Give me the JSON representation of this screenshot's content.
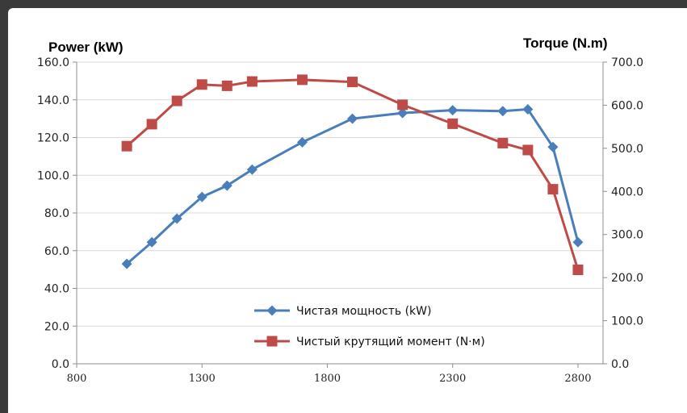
{
  "chart_data": {
    "type": "line",
    "y_left_label": "Power (kW)",
    "y_right_label": "Torque (N.m)",
    "xlim": [
      800,
      2900
    ],
    "x_ticks": [
      "800",
      "1300",
      "1800",
      "2300",
      "2800"
    ],
    "y_left_lim": [
      0,
      160
    ],
    "y_left_ticks": [
      "0.0",
      "20.0",
      "40.0",
      "60.0",
      "80.0",
      "100.0",
      "120.0",
      "140.0",
      "160.0"
    ],
    "y_right_lim": [
      0,
      700
    ],
    "y_right_ticks": [
      "0.0",
      "100.0",
      "200.0",
      "300.0",
      "400.0",
      "500.0",
      "600.0",
      "700.0"
    ],
    "grid": true,
    "legend_position": "bottom-center",
    "series": [
      {
        "name": "Чистая мощность (kW)",
        "axis": "left",
        "color": "#4a7ebb",
        "marker": "diamond",
        "x": [
          1000,
          1100,
          1200,
          1300,
          1400,
          1500,
          1700,
          1900,
          2100,
          2300,
          2500,
          2600,
          2700,
          2800
        ],
        "y": [
          53,
          64.5,
          77,
          88.5,
          94.5,
          103,
          117.5,
          130,
          133,
          134.5,
          134,
          135,
          115,
          64.5
        ]
      },
      {
        "name": "Чистый крутящий момент (N·м)",
        "axis": "right",
        "color": "#be4b48",
        "marker": "square",
        "x": [
          1000,
          1100,
          1200,
          1300,
          1400,
          1500,
          1700,
          1900,
          2100,
          2300,
          2500,
          2600,
          2700,
          2800
        ],
        "y": [
          505,
          556,
          610,
          648,
          645,
          655,
          659,
          654,
          601,
          557,
          512,
          496,
          405,
          218
        ]
      }
    ]
  }
}
